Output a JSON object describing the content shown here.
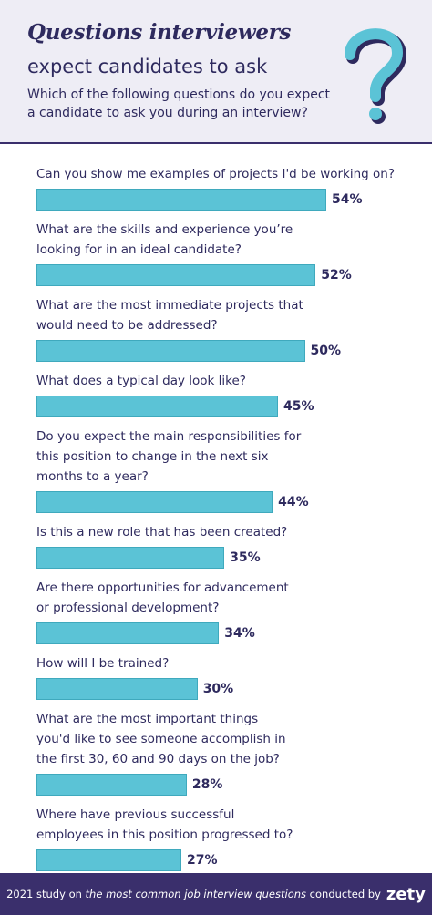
{
  "chart_data": {
    "type": "bar",
    "orientation": "horizontal",
    "title": {
      "emphasis": "Questions interviewers",
      "rest": "expect candidates to ask"
    },
    "subtitle": "Which of the following questions do you expect\na candidate to ask you during an interview?",
    "categories": [
      "Can you show me examples of projects I'd be working on?",
      "What are the skills and experience you’re\nlooking for in an ideal candidate?",
      "What are the most immediate projects that\nwould need to be addressed?",
      "What does a typical day look like?",
      "Do you expect the main responsibilities for\nthis position to change in the next six\nmonths to a year?",
      "Is this a new role that has been created?",
      "Are there opportunities for advancement\nor professional development?",
      "How will I be trained?",
      "What are the most important things\nyou'd like to see someone accomplish in\nthe first 30, 60 and 90 days on the job?",
      "Where have previous successful\nemployees in this position progressed to?"
    ],
    "values": [
      54,
      52,
      50,
      45,
      44,
      35,
      34,
      30,
      28,
      27
    ],
    "value_labels": [
      "54%",
      "52%",
      "50%",
      "45%",
      "44%",
      "35%",
      "34%",
      "30%",
      "28%",
      "27%"
    ],
    "color": "#5bc3d6",
    "footer": {
      "parts": [
        "2021 study on ",
        "the most common job interview questions",
        " conducted by"
      ],
      "brand": "zety"
    }
  }
}
